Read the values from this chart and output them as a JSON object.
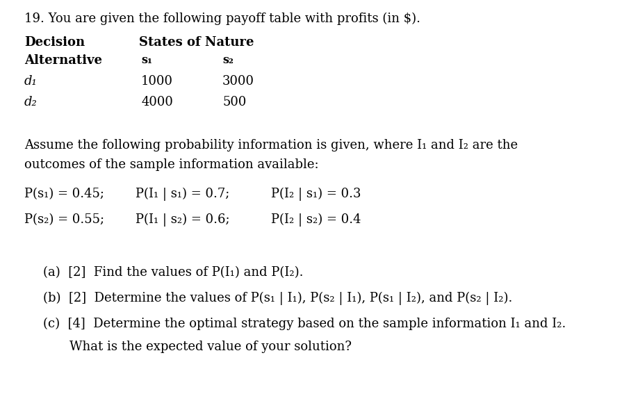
{
  "bg_color": "#ffffff",
  "text_color": "#000000",
  "fig_width": 9.08,
  "fig_height": 6.0,
  "dpi": 100,
  "title_text": "19. You are given the following payoff table with profits (in $).",
  "col_header1": "Decision",
  "col_header2": "States of Nature",
  "row_header1": "Alternative",
  "s1_header": "s₁",
  "s2_header": "s₂",
  "d1_label": "d₁",
  "d2_label": "d₂",
  "d1_s1": "1000",
  "d1_s2": "3000",
  "d2_s1": "4000",
  "d2_s2": "500",
  "assume_text1": "Assume the following probability information is given, where I₁ and I₂ are the",
  "assume_text2": "outcomes of the sample information available:",
  "prob_r1c1": "P(s₁) = 0.45;",
  "prob_r1c2": "P(I₁ | s₁) = 0.7;",
  "prob_r1c3": "P(I₂ | s₁) = 0.3",
  "prob_r2c1": "P(s₂) = 0.55;",
  "prob_r2c2": "P(I₁ | s₂) = 0.6;",
  "prob_r2c3": "P(I₂ | s₂) = 0.4",
  "qa_text": "(a)  [2]  Find the values of P(I₁) and P(I₂).",
  "qb_text": "(b)  [2]  Determine the values of P(s₁ | I₁), P(s₂ | I₁), P(s₁ | I₂), and P(s₂ | I₂).",
  "qc_text1": "(c)  [4]  Determine the optimal strategy based on the sample information I₁ and I₂.",
  "qc_text2": "What is the expected value of your solution?",
  "fs": 13.0,
  "fs_small": 11.5
}
